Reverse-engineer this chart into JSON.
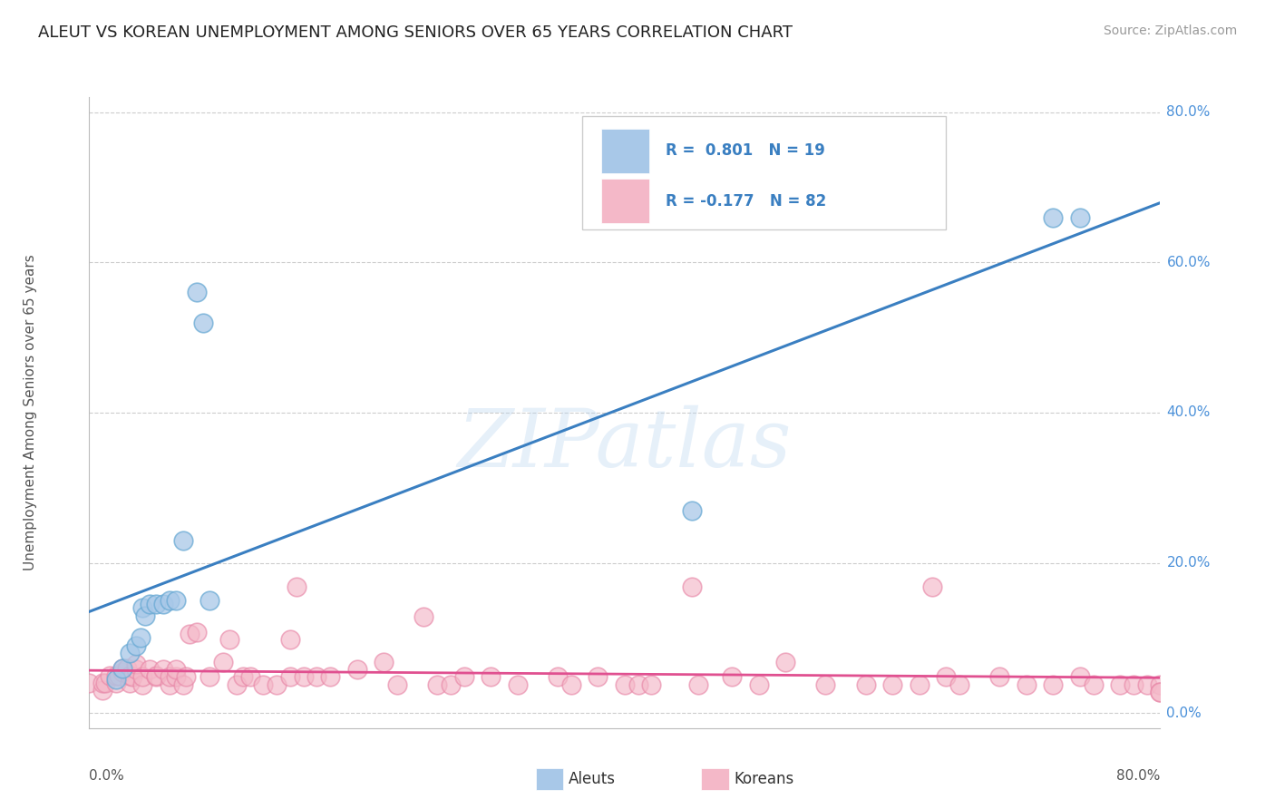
{
  "title": "ALEUT VS KOREAN UNEMPLOYMENT AMONG SENIORS OVER 65 YEARS CORRELATION CHART",
  "source": "Source: ZipAtlas.com",
  "ylabel": "Unemployment Among Seniors over 65 years",
  "watermark": "ZIPatlas",
  "aleuts_R": 0.801,
  "aleuts_N": 19,
  "koreans_R": -0.177,
  "koreans_N": 82,
  "aleut_color": "#a8c8e8",
  "korean_color": "#f4b8c8",
  "aleut_edge_color": "#6aaad4",
  "korean_edge_color": "#e888a8",
  "aleut_line_color": "#3a7fc1",
  "korean_line_color": "#e05090",
  "background_color": "#ffffff",
  "grid_color": "#cccccc",
  "xlim": [
    0.0,
    0.8
  ],
  "ylim": [
    -0.02,
    0.82
  ],
  "ytick_values": [
    0.0,
    0.2,
    0.4,
    0.6,
    0.8
  ],
  "ytick_labels": [
    "0.0%",
    "20.0%",
    "40.0%",
    "60.0%",
    "80.0%"
  ],
  "right_label_color": "#4a90d9",
  "aleut_x": [
    0.02,
    0.025,
    0.03,
    0.035,
    0.038,
    0.04,
    0.042,
    0.045,
    0.05,
    0.055,
    0.06,
    0.065,
    0.07,
    0.08,
    0.085,
    0.09,
    0.45,
    0.72,
    0.74
  ],
  "aleut_y": [
    0.045,
    0.06,
    0.08,
    0.09,
    0.1,
    0.14,
    0.13,
    0.145,
    0.145,
    0.145,
    0.15,
    0.15,
    0.23,
    0.56,
    0.52,
    0.15,
    0.27,
    0.66,
    0.66
  ],
  "korean_x": [
    0.0,
    0.01,
    0.01,
    0.012,
    0.015,
    0.02,
    0.02,
    0.022,
    0.025,
    0.025,
    0.028,
    0.03,
    0.03,
    0.032,
    0.035,
    0.035,
    0.04,
    0.04,
    0.045,
    0.05,
    0.05,
    0.055,
    0.06,
    0.06,
    0.065,
    0.065,
    0.07,
    0.072,
    0.075,
    0.08,
    0.09,
    0.1,
    0.105,
    0.11,
    0.115,
    0.12,
    0.13,
    0.14,
    0.15,
    0.15,
    0.155,
    0.16,
    0.17,
    0.18,
    0.2,
    0.22,
    0.23,
    0.25,
    0.26,
    0.27,
    0.28,
    0.3,
    0.32,
    0.35,
    0.36,
    0.38,
    0.4,
    0.41,
    0.42,
    0.45,
    0.455,
    0.48,
    0.5,
    0.52,
    0.55,
    0.58,
    0.6,
    0.62,
    0.63,
    0.64,
    0.65,
    0.68,
    0.7,
    0.72,
    0.74,
    0.75,
    0.77,
    0.78,
    0.79,
    0.8,
    0.8,
    0.8
  ],
  "korean_y": [
    0.04,
    0.03,
    0.04,
    0.04,
    0.05,
    0.04,
    0.05,
    0.05,
    0.055,
    0.06,
    0.06,
    0.04,
    0.05,
    0.048,
    0.058,
    0.065,
    0.038,
    0.048,
    0.058,
    0.048,
    0.05,
    0.058,
    0.038,
    0.048,
    0.048,
    0.058,
    0.038,
    0.048,
    0.105,
    0.108,
    0.048,
    0.068,
    0.098,
    0.038,
    0.048,
    0.048,
    0.038,
    0.038,
    0.048,
    0.098,
    0.168,
    0.048,
    0.048,
    0.048,
    0.058,
    0.068,
    0.038,
    0.128,
    0.038,
    0.038,
    0.048,
    0.048,
    0.038,
    0.048,
    0.038,
    0.048,
    0.038,
    0.038,
    0.038,
    0.168,
    0.038,
    0.048,
    0.038,
    0.068,
    0.038,
    0.038,
    0.038,
    0.038,
    0.168,
    0.048,
    0.038,
    0.048,
    0.038,
    0.038,
    0.048,
    0.038,
    0.038,
    0.038,
    0.038,
    0.038,
    0.028,
    0.028
  ]
}
